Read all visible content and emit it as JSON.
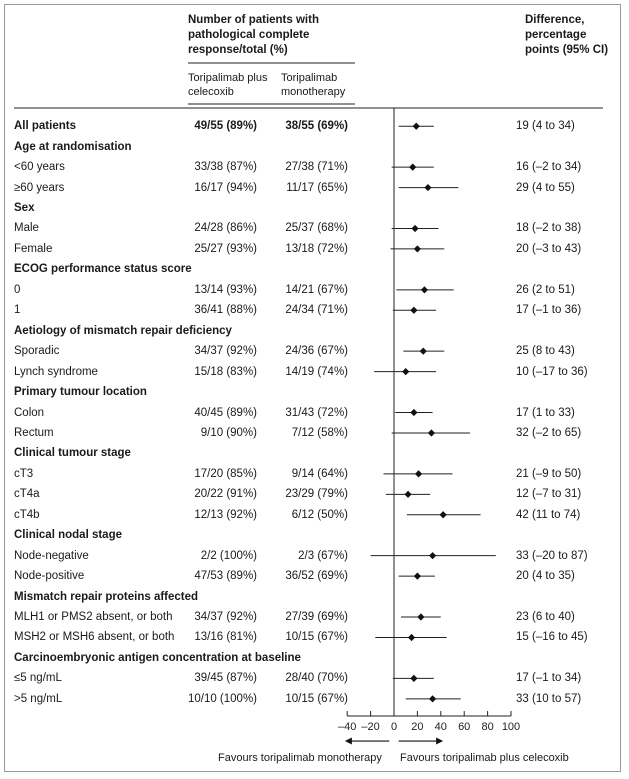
{
  "header": {
    "group_title": "Number of patients with pathological complete response/total (%)",
    "col1": "Toripalimab plus celecoxib",
    "col2": "Toripalimab monotherapy",
    "diff_title": "Difference, percentage points (95% CI)"
  },
  "footer": {
    "favours_left": "Favours toripalimab monotherapy",
    "favours_right": "Favours toripalimab plus celecoxib"
  },
  "chart_data": {
    "type": "forest",
    "x_ticks": [
      "–40",
      "–20",
      "0",
      "20",
      "40",
      "60",
      "80",
      "100"
    ],
    "x_tick_values": [
      -40,
      -20,
      0,
      20,
      40,
      60,
      80,
      100
    ],
    "xlim": [
      -40,
      100
    ],
    "rows": [
      {
        "kind": "data",
        "bold": true,
        "label": "All patients",
        "c1": "49/55 (89%)",
        "c2": "38/55 (69%)",
        "diff": "19 (4 to 34)",
        "est": 19,
        "lo": 4,
        "hi": 34
      },
      {
        "kind": "group",
        "label": "Age at randomisation"
      },
      {
        "kind": "data",
        "label": "<60 years",
        "c1": "33/38 (87%)",
        "c2": "27/38 (71%)",
        "diff": "16 (–2 to 34)",
        "est": 16,
        "lo": -2,
        "hi": 34
      },
      {
        "kind": "data",
        "label": "≥60 years",
        "c1": "16/17 (94%)",
        "c2": "11/17 (65%)",
        "diff": "29 (4 to 55)",
        "est": 29,
        "lo": 4,
        "hi": 55
      },
      {
        "kind": "group",
        "label": "Sex"
      },
      {
        "kind": "data",
        "label": "Male",
        "c1": "24/28 (86%)",
        "c2": "25/37 (68%)",
        "diff": "18 (–2 to 38)",
        "est": 18,
        "lo": -2,
        "hi": 38
      },
      {
        "kind": "data",
        "label": "Female",
        "c1": "25/27 (93%)",
        "c2": "13/18 (72%)",
        "diff": "20 (–3 to 43)",
        "est": 20,
        "lo": -3,
        "hi": 43
      },
      {
        "kind": "group",
        "label": "ECOG performance status score"
      },
      {
        "kind": "data",
        "label": "0",
        "c1": "13/14 (93%)",
        "c2": "14/21 (67%)",
        "diff": "26 (2 to 51)",
        "est": 26,
        "lo": 2,
        "hi": 51
      },
      {
        "kind": "data",
        "label": "1",
        "c1": "36/41 (88%)",
        "c2": "24/34 (71%)",
        "diff": "17 (–1 to 36)",
        "est": 17,
        "lo": -1,
        "hi": 36
      },
      {
        "kind": "group",
        "label": "Aetiology of mismatch repair deficiency"
      },
      {
        "kind": "data",
        "label": "Sporadic",
        "c1": "34/37 (92%)",
        "c2": "24/36 (67%)",
        "diff": "25 (8 to 43)",
        "est": 25,
        "lo": 8,
        "hi": 43
      },
      {
        "kind": "data",
        "label": "Lynch syndrome",
        "c1": "15/18 (83%)",
        "c2": "14/19 (74%)",
        "diff": "10 (–17 to 36)",
        "est": 10,
        "lo": -17,
        "hi": 36
      },
      {
        "kind": "group",
        "label": "Primary tumour location"
      },
      {
        "kind": "data",
        "label": "Colon",
        "c1": "40/45 (89%)",
        "c2": "31/43 (72%)",
        "diff": "17 (1 to 33)",
        "est": 17,
        "lo": 1,
        "hi": 33
      },
      {
        "kind": "data",
        "label": "Rectum",
        "c1": "9/10 (90%)",
        "c2": "7/12 (58%)",
        "diff": "32 (–2 to 65)",
        "est": 32,
        "lo": -2,
        "hi": 65
      },
      {
        "kind": "group",
        "label": "Clinical tumour stage"
      },
      {
        "kind": "data",
        "label": "cT3",
        "c1": "17/20 (85%)",
        "c2": "9/14 (64%)",
        "diff": "21 (–9 to 50)",
        "est": 21,
        "lo": -9,
        "hi": 50
      },
      {
        "kind": "data",
        "label": "cT4a",
        "c1": "20/22 (91%)",
        "c2": "23/29 (79%)",
        "diff": "12 (–7 to 31)",
        "est": 12,
        "lo": -7,
        "hi": 31
      },
      {
        "kind": "data",
        "label": "cT4b",
        "c1": "12/13 (92%)",
        "c2": "6/12 (50%)",
        "diff": "42 (11 to 74)",
        "est": 42,
        "lo": 11,
        "hi": 74
      },
      {
        "kind": "group",
        "label": "Clinical nodal stage"
      },
      {
        "kind": "data",
        "label": "Node-negative",
        "c1": "2/2 (100%)",
        "c2": "2/3 (67%)",
        "diff": "33 (–20 to 87)",
        "est": 33,
        "lo": -20,
        "hi": 87
      },
      {
        "kind": "data",
        "label": "Node-positive",
        "c1": "47/53 (89%)",
        "c2": "36/52 (69%)",
        "diff": "20 (4 to 35)",
        "est": 20,
        "lo": 4,
        "hi": 35
      },
      {
        "kind": "group",
        "label": "Mismatch repair proteins affected"
      },
      {
        "kind": "data",
        "label": "MLH1 or PMS2 absent, or both",
        "c1": "34/37 (92%)",
        "c2": "27/39 (69%)",
        "diff": "23 (6 to 40)",
        "est": 23,
        "lo": 6,
        "hi": 40
      },
      {
        "kind": "data",
        "label": "MSH2 or MSH6 absent, or both",
        "c1": "13/16 (81%)",
        "c2": "10/15 (67%)",
        "diff": "15 (–16 to 45)",
        "est": 15,
        "lo": -16,
        "hi": 45
      },
      {
        "kind": "group",
        "label": "Carcinoembryonic antigen concentration at baseline"
      },
      {
        "kind": "data",
        "label": "≤5 ng/mL",
        "c1": "39/45 (87%)",
        "c2": "28/40 (70%)",
        "diff": "17 (–1 to 34)",
        "est": 17,
        "lo": -1,
        "hi": 34
      },
      {
        "kind": "data",
        "label": ">5 ng/mL",
        "c1": "10/10 (100%)",
        "c2": "10/15 (67%)",
        "diff": "33 (10 to 57)",
        "est": 33,
        "lo": 10,
        "hi": 57
      }
    ]
  }
}
